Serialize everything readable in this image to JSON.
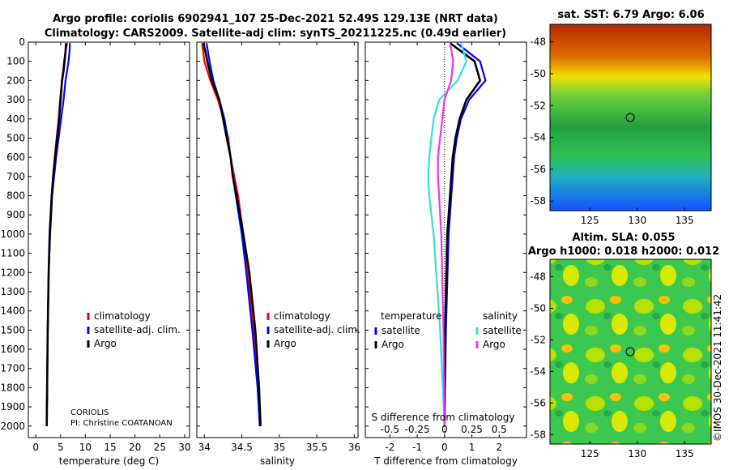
{
  "title_line1": "Argo profile: coriolis 6902941_107 25-Dec-2021 52.49S 129.13E (NRT data)",
  "title_line2": "Climatology: CARS2009. Satellite-adj clim: synTS_20211225.nc (0.49d earlier)",
  "colors": {
    "climatology": "#ff0000",
    "satellite": "#0000ff",
    "argo": "#000000",
    "sat_t": "#33dddd",
    "sat_s": "#ee33ee"
  },
  "chart_data": [
    {
      "type": "line",
      "name": "temperature",
      "xlabel": "temperature (deg C)",
      "xlim": [
        -1.5,
        31
      ],
      "xticks": [
        0,
        5,
        10,
        15,
        20,
        25,
        30
      ],
      "ylim": [
        0,
        2060
      ],
      "yticks": [
        0,
        100,
        200,
        300,
        400,
        500,
        600,
        700,
        800,
        900,
        1000,
        1100,
        1200,
        1300,
        1400,
        1500,
        1600,
        1700,
        1800,
        1900,
        2000
      ],
      "legend": [
        "climatology",
        "satellite-adj. clim.",
        "Argo"
      ],
      "annotation": [
        "CORIOLIS",
        "PI: Christine COATANOAN"
      ],
      "series": [
        {
          "name": "climatology",
          "depth": [
            5,
            50,
            100,
            150,
            200,
            300,
            400,
            500,
            600,
            700,
            800,
            900,
            1000,
            1200,
            1500,
            2000
          ],
          "values": [
            6.3,
            6.0,
            5.7,
            5.5,
            5.3,
            4.9,
            4.6,
            4.2,
            3.8,
            3.5,
            3.2,
            3.0,
            2.8,
            2.6,
            2.4,
            2.2
          ]
        },
        {
          "name": "satellite-adj. clim.",
          "depth": [
            5,
            50,
            100,
            150,
            200,
            300,
            400,
            500,
            600,
            700,
            800,
            900,
            1000,
            1200,
            1500,
            2000
          ],
          "values": [
            6.9,
            6.8,
            6.6,
            6.3,
            6.0,
            5.6,
            5.1,
            4.6,
            4.1,
            3.7,
            3.3,
            3.1,
            2.9,
            2.6,
            2.4,
            2.2
          ]
        },
        {
          "name": "Argo",
          "depth": [
            5,
            50,
            100,
            150,
            200,
            300,
            400,
            500,
            600,
            700,
            800,
            900,
            1000,
            1200,
            1500,
            2000
          ],
          "values": [
            6.1,
            6.0,
            5.8,
            5.6,
            5.3,
            5.0,
            4.7,
            4.3,
            3.9,
            3.5,
            3.2,
            3.0,
            2.8,
            2.6,
            2.4,
            2.2
          ]
        }
      ]
    },
    {
      "type": "line",
      "name": "salinity",
      "xlabel": "salinity",
      "xlim": [
        33.9,
        36.05
      ],
      "xticks": [
        34,
        34.5,
        35,
        35.5,
        36
      ],
      "ylim": [
        0,
        2060
      ],
      "legend": [
        "climatology",
        "satellite-adj. clim.",
        "Argo"
      ],
      "series": [
        {
          "name": "climatology",
          "depth": [
            5,
            100,
            200,
            300,
            400,
            500,
            600,
            700,
            800,
            1000,
            1200,
            1500,
            1800,
            2000
          ],
          "values": [
            33.97,
            34.0,
            34.08,
            34.18,
            34.26,
            34.32,
            34.35,
            34.4,
            34.45,
            34.52,
            34.58,
            34.66,
            34.72,
            34.74
          ]
        },
        {
          "name": "satellite-adj. clim.",
          "depth": [
            5,
            100,
            200,
            300,
            400,
            500,
            600,
            700,
            800,
            1000,
            1200,
            1500,
            1800,
            2000
          ],
          "values": [
            34.03,
            34.07,
            34.12,
            34.2,
            34.27,
            34.31,
            34.35,
            34.38,
            34.42,
            34.5,
            34.56,
            34.64,
            34.71,
            34.74
          ]
        },
        {
          "name": "Argo",
          "depth": [
            5,
            100,
            200,
            300,
            400,
            500,
            600,
            700,
            800,
            1000,
            1200,
            1500,
            1800,
            2000
          ],
          "values": [
            33.99,
            34.04,
            34.1,
            34.2,
            34.25,
            34.3,
            34.35,
            34.38,
            34.43,
            34.52,
            34.6,
            34.68,
            34.73,
            34.75
          ]
        }
      ]
    },
    {
      "type": "line",
      "name": "difference from climatology",
      "xlabel": "T difference from climatology",
      "xlim": [
        -2.9,
        3.0
      ],
      "xticks": [
        -2,
        -1,
        0,
        1,
        2
      ],
      "s_xlabel": "S difference from climatology",
      "s_xticks": [
        "-0.5",
        "-0.25",
        "0",
        "0.25",
        "0.5"
      ],
      "ylim": [
        0,
        2060
      ],
      "legend_titles": [
        "temperature",
        "salinity"
      ],
      "legend": [
        "satellite",
        "Argo",
        "satellite",
        "Argo"
      ],
      "series": [
        {
          "name": "T satellite",
          "depth": [
            5,
            100,
            200,
            300,
            400,
            500,
            600,
            700,
            800,
            1000,
            1500,
            2000
          ],
          "values": [
            0.45,
            1.3,
            1.5,
            0.9,
            0.6,
            0.45,
            0.35,
            0.3,
            0.25,
            0.15,
            0.05,
            0.0
          ]
        },
        {
          "name": "T Argo",
          "depth": [
            5,
            100,
            200,
            300,
            400,
            500,
            600,
            700,
            800,
            1000,
            1500,
            2000
          ],
          "values": [
            0.2,
            1.1,
            1.3,
            0.8,
            0.55,
            0.4,
            0.3,
            0.25,
            0.2,
            0.1,
            0.02,
            0.0
          ]
        },
        {
          "name": "S satellite",
          "depth": [
            5,
            100,
            200,
            300,
            400,
            500,
            600,
            700,
            800,
            1000,
            1500,
            2000
          ],
          "values": [
            0.15,
            0.2,
            0.12,
            -0.05,
            -0.1,
            -0.12,
            -0.14,
            -0.15,
            -0.14,
            -0.1,
            -0.04,
            0.0
          ]
        },
        {
          "name": "S Argo",
          "depth": [
            5,
            100,
            200,
            300,
            400,
            500,
            600,
            700,
            800,
            1000,
            1500,
            2000
          ],
          "values": [
            0.05,
            0.08,
            0.06,
            0.0,
            -0.02,
            -0.04,
            -0.06,
            -0.06,
            -0.05,
            -0.03,
            -0.01,
            0.0
          ]
        }
      ]
    }
  ],
  "maps": [
    {
      "title": "sat. SST: 6.79 Argo: 6.06",
      "yticks": [
        "-48",
        "-50",
        "-52",
        "-54",
        "-56",
        "-58"
      ],
      "xticks": [
        "125",
        "130",
        "135"
      ],
      "marker": {
        "lon": 129.13,
        "lat": -52.49
      }
    },
    {
      "title_line1": "Altim. SLA: 0.055",
      "title_line2": "Argo h1000: 0.018 h2000: 0.012",
      "yticks": [
        "-48",
        "-50",
        "-52",
        "-54",
        "-56",
        "-58"
      ],
      "xticks": [
        "125",
        "130",
        "135"
      ],
      "marker": {
        "lon": 129.13,
        "lat": -52.49
      }
    }
  ],
  "watermark": "©IMOS 30-Dec-2021 11:41:42"
}
